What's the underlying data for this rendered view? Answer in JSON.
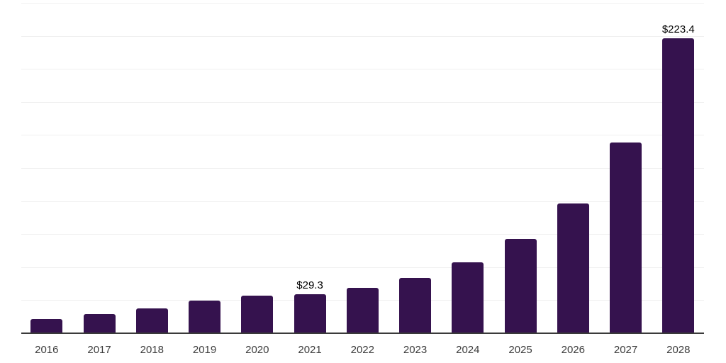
{
  "chart_data": {
    "type": "bar",
    "title": "",
    "xlabel": "",
    "ylabel": "",
    "categories": [
      "2016",
      "2017",
      "2018",
      "2019",
      "2020",
      "2021",
      "2022",
      "2023",
      "2024",
      "2025",
      "2026",
      "2027",
      "2028"
    ],
    "values": [
      10.7,
      14.4,
      18.7,
      24.7,
      28.6,
      29.3,
      34.3,
      42.0,
      53.8,
      71.2,
      98.3,
      144.3,
      223.4
    ],
    "data_labels": {
      "2021": "$29.3",
      "2028": "$223.4"
    },
    "ylim": [
      0,
      250
    ],
    "gridline_step": 25,
    "grid": true,
    "legend": false,
    "y_axis_labels_visible": false,
    "colors": {
      "bar": "#35124E",
      "axis_line": "#3a3a3a",
      "gridline": "#f0f0f0",
      "tick_label": "#3d3d3d",
      "data_label": "#000000",
      "background": "#ffffff"
    }
  }
}
